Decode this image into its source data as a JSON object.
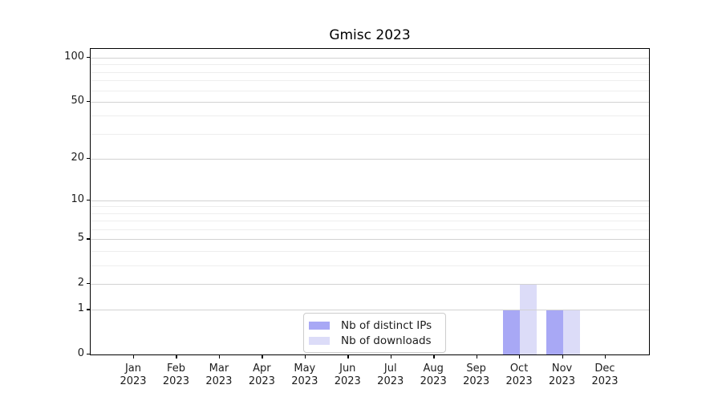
{
  "chart_data": {
    "type": "bar",
    "title": "Gmisc 2023",
    "categories": [
      {
        "month": "Jan",
        "year": "2023"
      },
      {
        "month": "Feb",
        "year": "2023"
      },
      {
        "month": "Mar",
        "year": "2023"
      },
      {
        "month": "Apr",
        "year": "2023"
      },
      {
        "month": "May",
        "year": "2023"
      },
      {
        "month": "Jun",
        "year": "2023"
      },
      {
        "month": "Jul",
        "year": "2023"
      },
      {
        "month": "Aug",
        "year": "2023"
      },
      {
        "month": "Sep",
        "year": "2023"
      },
      {
        "month": "Oct",
        "year": "2023"
      },
      {
        "month": "Nov",
        "year": "2023"
      },
      {
        "month": "Dec",
        "year": "2023"
      }
    ],
    "series": [
      {
        "name": "Nb of distinct IPs",
        "color": "#a8a8f5",
        "values": [
          0,
          0,
          0,
          0,
          0,
          0,
          0,
          0,
          0,
          1,
          1,
          0
        ]
      },
      {
        "name": "Nb of downloads",
        "color": "#dcdcf8",
        "values": [
          0,
          0,
          0,
          0,
          0,
          0,
          0,
          0,
          0,
          2,
          1,
          0
        ]
      }
    ],
    "xlabel": "",
    "ylabel": "",
    "yscale": "log1p",
    "ylim": [
      0,
      115
    ],
    "y_major_ticks": [
      0,
      1,
      2,
      5,
      10,
      20,
      50,
      100
    ],
    "y_minor_ticks": [
      3,
      4,
      6,
      7,
      8,
      9,
      30,
      40,
      60,
      70,
      80,
      90
    ],
    "grid": true,
    "legend_position": "inside-bottom-center",
    "colors": {
      "grid_major": "#d2d2d2",
      "grid_minor": "#eeeeee",
      "axis": "#000000",
      "text": "#1c1c1c"
    }
  }
}
